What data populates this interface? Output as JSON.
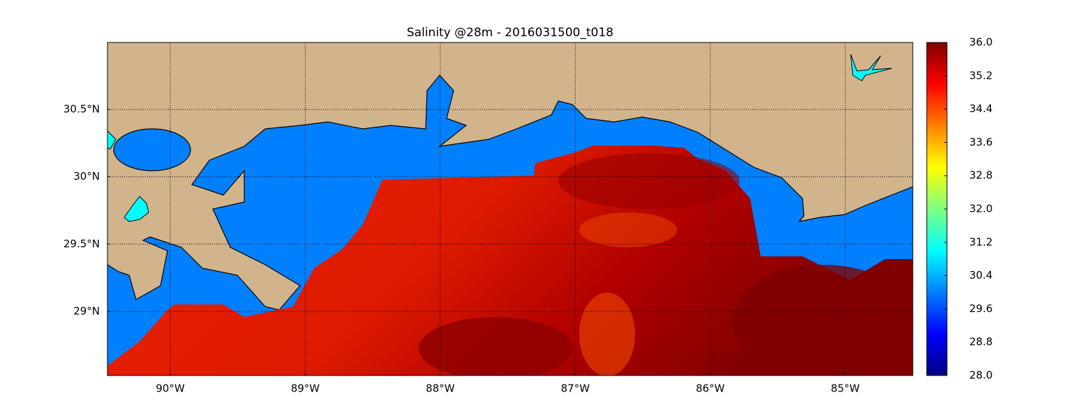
{
  "map": {
    "title": "Salinity @28m - 2016031500_t018",
    "xlim": [
      -90.465,
      -84.5
    ],
    "ylim": [
      28.524,
      30.997
    ],
    "xticks": [
      {
        "value": -90,
        "label": "90°W"
      },
      {
        "value": -89,
        "label": "89°W"
      },
      {
        "value": -88,
        "label": "88°W"
      },
      {
        "value": -87,
        "label": "87°W"
      },
      {
        "value": -86,
        "label": "86°W"
      },
      {
        "value": -85,
        "label": "85°W"
      }
    ],
    "yticks": [
      {
        "value": 29,
        "label": "29°N"
      },
      {
        "value": 29.5,
        "label": "29.5°N"
      },
      {
        "value": 30,
        "label": "30°N"
      },
      {
        "value": 30.5,
        "label": "30.5°N"
      }
    ],
    "grid": true,
    "colorbar": {
      "lim": [
        28,
        36
      ],
      "ticks": [
        {
          "value": 28,
          "label": "28.0"
        },
        28.8,
        29.6,
        30.4,
        31.2,
        {
          "value": 32,
          "label": "32.0"
        },
        32.8,
        33.6,
        34.4,
        35.2,
        {
          "value": 36,
          "label": "36.0"
        }
      ]
    }
  }
}
